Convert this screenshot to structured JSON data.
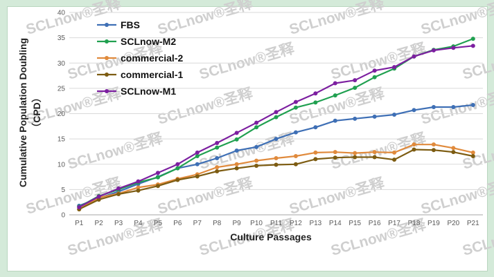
{
  "chart_data": {
    "type": "line",
    "title": "",
    "xlabel": "Culture Passages",
    "ylabel": "Cumulative Population Doubling",
    "ylabel_unit": "（CPD）",
    "categories": [
      "P1",
      "P2",
      "P3",
      "P4",
      "P5",
      "P6",
      "P7",
      "P8",
      "P9",
      "P10",
      "P11",
      "P12",
      "P13",
      "P14",
      "P15",
      "P16",
      "P17",
      "P18",
      "P19",
      "P20",
      "P21"
    ],
    "ylim": [
      0,
      40
    ],
    "yticks": [
      0,
      5,
      10,
      15,
      20,
      25,
      30,
      35,
      40
    ],
    "grid": true,
    "legend_position": "top-left",
    "watermark_text": "SCLnow®圣释",
    "series": [
      {
        "name": "FBS",
        "color": "#3e6fb5",
        "values": [
          1.8,
          3.3,
          4.6,
          6.1,
          7.5,
          9.2,
          10.0,
          11.2,
          12.7,
          13.4,
          15.0,
          16.3,
          17.3,
          18.6,
          19.0,
          19.4,
          19.8,
          20.7,
          21.3,
          21.3,
          21.7
        ]
      },
      {
        "name": "SCLnow-M2",
        "color": "#20a050",
        "values": [
          1.6,
          3.7,
          5.0,
          6.4,
          7.4,
          9.2,
          11.6,
          13.3,
          14.9,
          17.3,
          19.3,
          21.2,
          22.2,
          23.6,
          25.1,
          27.2,
          28.9,
          31.3,
          32.6,
          33.3,
          34.8
        ]
      },
      {
        "name": "commercial-2",
        "color": "#e08a3c",
        "values": [
          1.1,
          3.4,
          4.2,
          5.4,
          6.0,
          7.1,
          8.0,
          9.4,
          10.0,
          10.7,
          11.2,
          11.6,
          12.3,
          12.4,
          12.2,
          12.4,
          12.3,
          13.9,
          13.9,
          13.2,
          12.3
        ]
      },
      {
        "name": "commercial-1",
        "color": "#7d5c12",
        "values": [
          1.1,
          3.0,
          4.1,
          4.8,
          5.7,
          6.9,
          7.6,
          8.6,
          9.2,
          9.7,
          9.9,
          10.0,
          11.0,
          11.3,
          11.4,
          11.4,
          10.9,
          12.9,
          12.8,
          12.4,
          11.6
        ]
      },
      {
        "name": "SCLnow-M1",
        "color": "#7c1fa0",
        "values": [
          1.5,
          3.6,
          5.2,
          6.6,
          8.3,
          10.0,
          12.3,
          14.2,
          16.2,
          18.2,
          20.3,
          22.3,
          24.0,
          26.0,
          26.6,
          28.5,
          29.2,
          31.3,
          32.5,
          33.0,
          33.4
        ]
      }
    ]
  }
}
